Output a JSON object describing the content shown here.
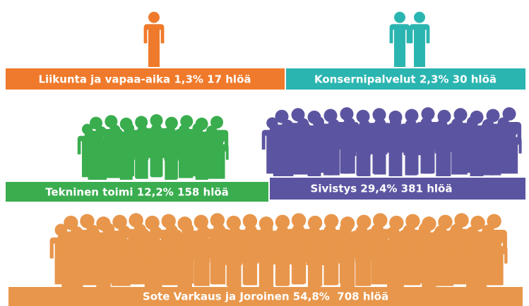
{
  "groups": [
    {
      "label": "Liikunta ja vapaa-aika 1,3% 17 hlöä",
      "color": "#f07a2b"
    },
    {
      "label": "Konsernipalvelut 2,3% 30 hlöä",
      "color": "#2bb5b1"
    },
    {
      "label": "Tekninen toimi 12,2% 158 hlöä",
      "color": "#3aad4f"
    },
    {
      "label": "Sivistys 29,4% 381 hlöä",
      "color": "#5b55a1"
    },
    {
      "label": "Sote Varkaus ja Joroinen 54,8%  708 hlöä",
      "color": "#e8964b"
    }
  ]
}
